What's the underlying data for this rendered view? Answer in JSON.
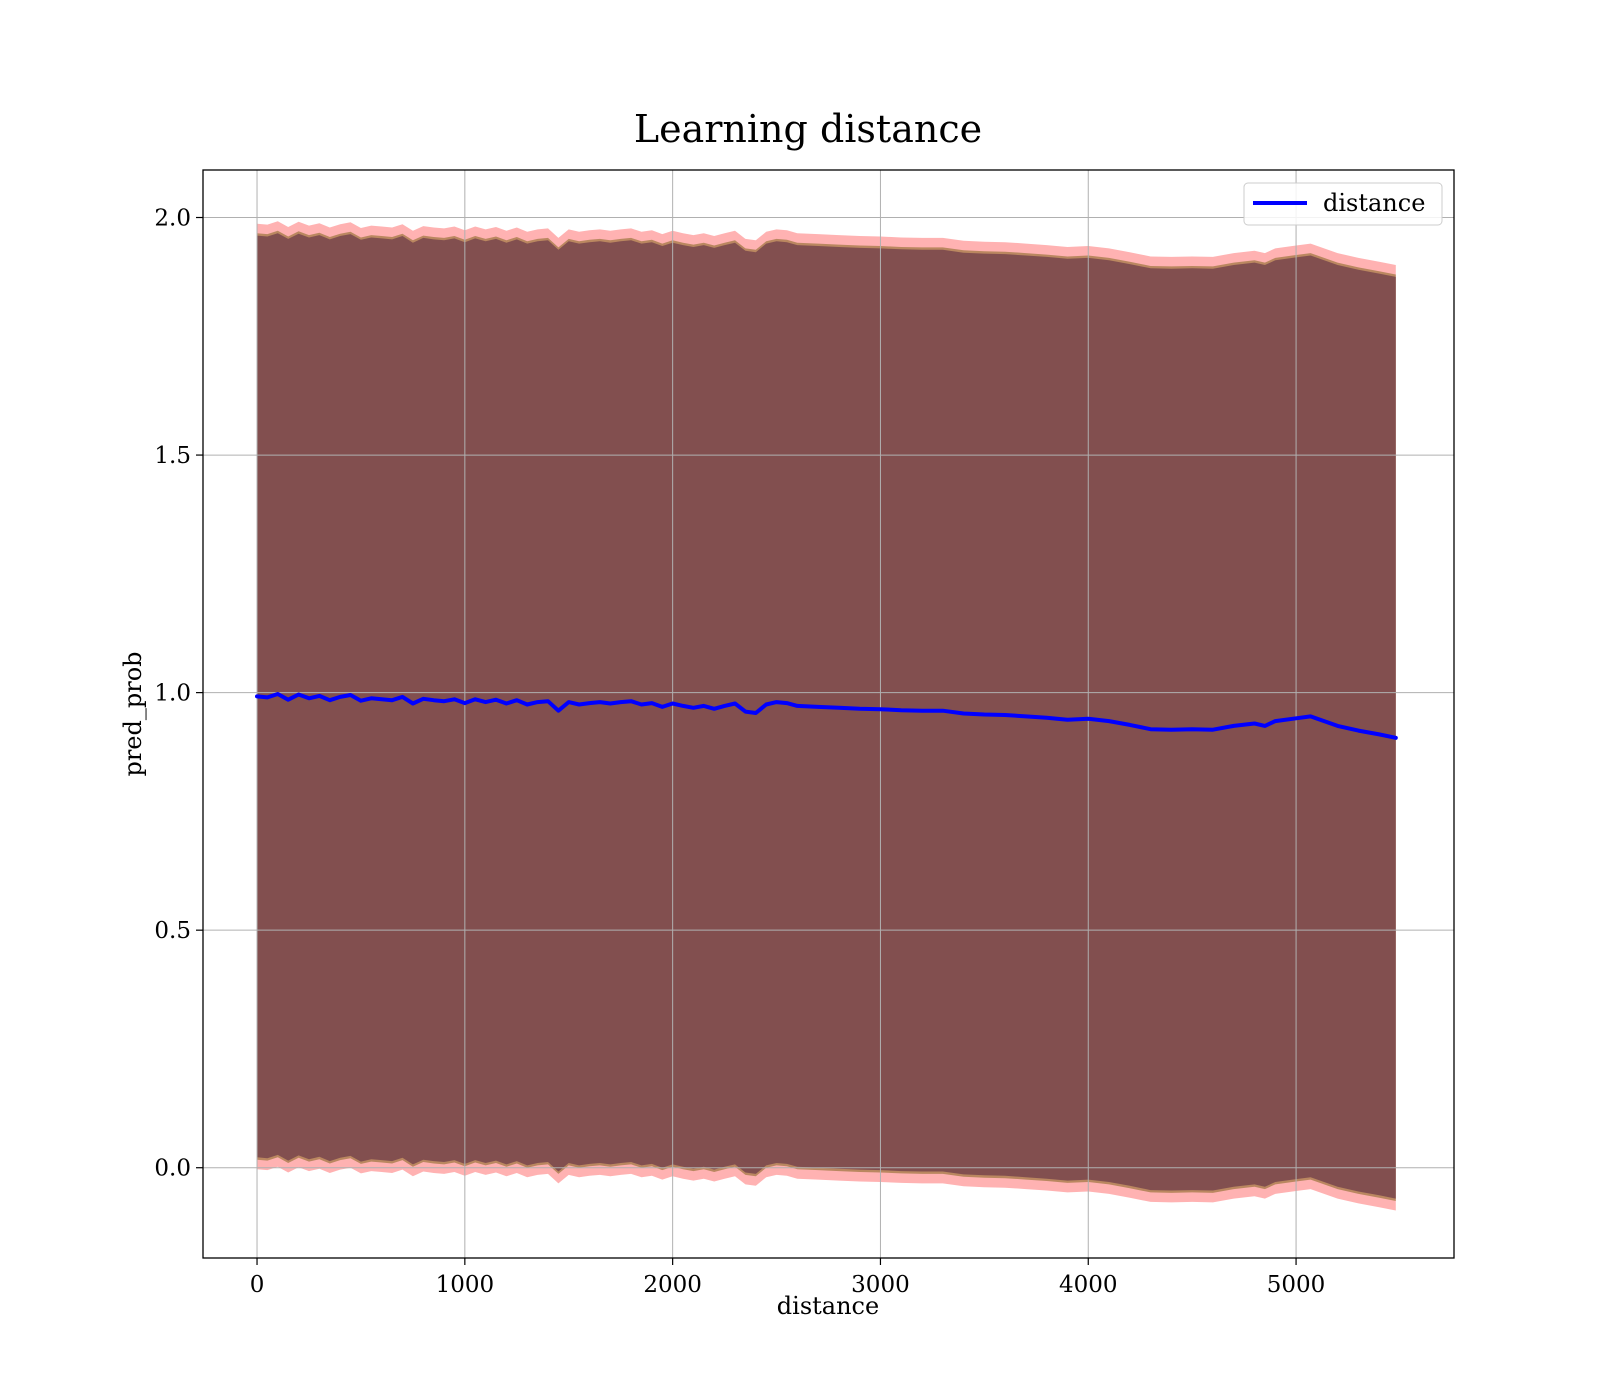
{
  "chart_data": {
    "type": "line",
    "title": "Learning distance",
    "xlabel": "distance",
    "ylabel": "pred_prob",
    "xlim": [
      -260,
      5760
    ],
    "ylim": [
      -0.19,
      2.1
    ],
    "xticks": [
      0,
      1000,
      2000,
      3000,
      4000,
      5000
    ],
    "yticks": [
      0.0,
      0.5,
      1.0,
      1.5,
      2.0
    ],
    "xtick_labels": [
      "0",
      "1000",
      "2000",
      "3000",
      "4000",
      "5000"
    ],
    "ytick_labels": [
      "0.0",
      "0.5",
      "1.0",
      "1.5",
      "2.0"
    ],
    "grid": true,
    "legend": {
      "position": "top-right",
      "entries": [
        "distance"
      ]
    },
    "series": [
      {
        "name": "distance",
        "color": "#0000ff",
        "x": [
          0,
          50,
          100,
          150,
          200,
          250,
          300,
          350,
          400,
          450,
          500,
          550,
          600,
          650,
          700,
          750,
          800,
          850,
          900,
          950,
          1000,
          1050,
          1100,
          1150,
          1200,
          1250,
          1300,
          1350,
          1400,
          1450,
          1500,
          1550,
          1600,
          1650,
          1700,
          1750,
          1800,
          1850,
          1900,
          1950,
          2000,
          2050,
          2100,
          2150,
          2200,
          2250,
          2300,
          2350,
          2400,
          2450,
          2500,
          2550,
          2600,
          2700,
          2800,
          2900,
          3000,
          3100,
          3200,
          3300,
          3400,
          3500,
          3600,
          3700,
          3800,
          3900,
          4000,
          4100,
          4200,
          4300,
          4400,
          4500,
          4600,
          4700,
          4800,
          4850,
          4900,
          5000,
          5070,
          5200,
          5300,
          5400,
          5480
        ],
        "y": [
          0.992,
          0.99,
          0.997,
          0.985,
          0.996,
          0.988,
          0.993,
          0.984,
          0.991,
          0.995,
          0.983,
          0.988,
          0.986,
          0.984,
          0.991,
          0.977,
          0.987,
          0.984,
          0.982,
          0.986,
          0.978,
          0.986,
          0.98,
          0.985,
          0.977,
          0.984,
          0.975,
          0.98,
          0.982,
          0.962,
          0.98,
          0.975,
          0.978,
          0.98,
          0.977,
          0.98,
          0.982,
          0.975,
          0.978,
          0.97,
          0.977,
          0.972,
          0.968,
          0.972,
          0.966,
          0.972,
          0.977,
          0.96,
          0.957,
          0.975,
          0.98,
          0.978,
          0.972,
          0.97,
          0.968,
          0.966,
          0.965,
          0.963,
          0.962,
          0.962,
          0.956,
          0.954,
          0.953,
          0.95,
          0.947,
          0.943,
          0.945,
          0.94,
          0.932,
          0.923,
          0.922,
          0.923,
          0.922,
          0.93,
          0.935,
          0.93,
          0.94,
          0.946,
          0.95,
          0.93,
          0.92,
          0.912,
          0.905
        ]
      }
    ],
    "bands": [
      {
        "color": "#ff7f7f",
        "upper_offset": [
          0.995,
          0.995,
          0.995,
          0.995,
          0.995,
          0.995,
          0.995,
          0.995,
          0.995,
          0.995,
          0.995,
          0.995,
          0.995,
          0.995,
          0.995,
          0.995,
          0.995,
          0.995,
          0.995,
          0.995,
          0.995,
          0.995,
          0.995,
          0.995,
          0.995,
          0.995,
          0.995,
          0.995,
          0.995,
          0.995,
          0.995,
          0.995,
          0.995,
          0.995,
          0.995,
          0.995,
          0.995,
          0.995,
          0.995,
          0.995,
          0.995,
          0.995,
          0.995,
          0.995,
          0.995,
          0.995,
          0.995,
          0.995,
          0.995,
          0.995,
          0.995,
          0.995,
          0.995,
          0.995,
          0.995,
          0.995,
          0.995,
          0.995,
          0.995,
          0.995,
          0.995,
          0.995,
          0.995,
          0.995,
          0.995,
          0.995,
          0.995,
          0.995,
          0.995,
          0.995,
          0.995,
          0.995,
          0.995,
          0.995,
          0.995,
          0.995,
          0.995,
          0.995,
          0.995,
          0.995,
          0.995,
          0.995,
          0.995
        ]
      },
      {
        "color": "#8c6a2a",
        "upper_offset": [
          0.975,
          0.975,
          0.975,
          0.975,
          0.975,
          0.975,
          0.975,
          0.975,
          0.975,
          0.975,
          0.975,
          0.975,
          0.975,
          0.975,
          0.975,
          0.975,
          0.975,
          0.975,
          0.975,
          0.975,
          0.975,
          0.975,
          0.975,
          0.975,
          0.975,
          0.975,
          0.975,
          0.975,
          0.975,
          0.975,
          0.975,
          0.975,
          0.975,
          0.975,
          0.975,
          0.975,
          0.975,
          0.975,
          0.975,
          0.975,
          0.975,
          0.975,
          0.975,
          0.975,
          0.975,
          0.975,
          0.975,
          0.975,
          0.975,
          0.975,
          0.975,
          0.975,
          0.975,
          0.975,
          0.975,
          0.975,
          0.975,
          0.975,
          0.975,
          0.975,
          0.975,
          0.975,
          0.975,
          0.975,
          0.975,
          0.975,
          0.975,
          0.975,
          0.975,
          0.975,
          0.975,
          0.975,
          0.975,
          0.975,
          0.975,
          0.975,
          0.975,
          0.975,
          0.975,
          0.975,
          0.975,
          0.975,
          0.975
        ]
      },
      {
        "color": "#5e2a45",
        "upper_offset": [
          0.97,
          0.97,
          0.97,
          0.97,
          0.97,
          0.97,
          0.97,
          0.97,
          0.97,
          0.97,
          0.97,
          0.97,
          0.97,
          0.97,
          0.97,
          0.97,
          0.97,
          0.97,
          0.97,
          0.97,
          0.97,
          0.97,
          0.97,
          0.97,
          0.97,
          0.97,
          0.97,
          0.97,
          0.97,
          0.97,
          0.97,
          0.97,
          0.97,
          0.97,
          0.97,
          0.97,
          0.97,
          0.97,
          0.97,
          0.97,
          0.97,
          0.97,
          0.97,
          0.97,
          0.97,
          0.97,
          0.97,
          0.97,
          0.97,
          0.97,
          0.97,
          0.97,
          0.97,
          0.97,
          0.97,
          0.97,
          0.97,
          0.97,
          0.97,
          0.97,
          0.97,
          0.97,
          0.97,
          0.97,
          0.97,
          0.97,
          0.97,
          0.97,
          0.97,
          0.97,
          0.97,
          0.97,
          0.97,
          0.97,
          0.97,
          0.97,
          0.97,
          0.97,
          0.97,
          0.97,
          0.97,
          0.97,
          0.97
        ]
      }
    ]
  }
}
